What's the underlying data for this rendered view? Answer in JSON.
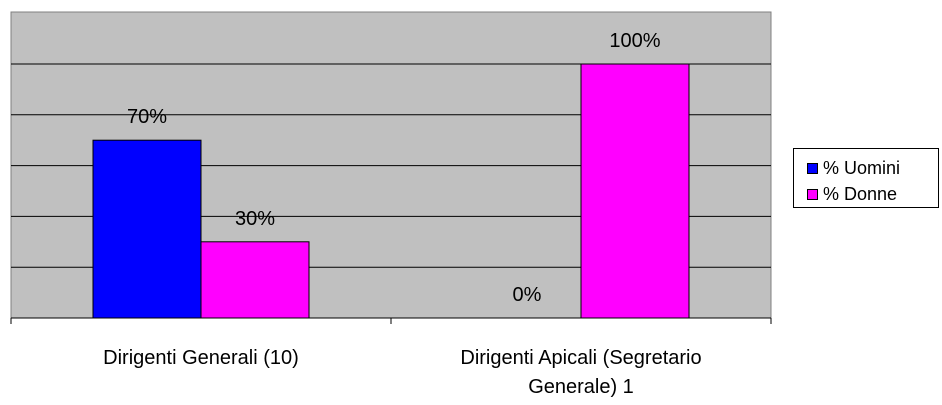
{
  "chart_data": {
    "type": "bar",
    "categories": [
      "Dirigenti Generali (10)",
      "Dirigenti Apicali (Segretario Generale) 1"
    ],
    "category_label_lines": [
      [
        "Dirigenti Generali (10)"
      ],
      [
        "Dirigenti Apicali (Segretario",
        "Generale) 1"
      ]
    ],
    "series": [
      {
        "name": "% Uomini",
        "values": [
          70,
          0
        ],
        "labels": [
          "70%",
          "0%"
        ],
        "color": "#0000ff"
      },
      {
        "name": "% Donne",
        "values": [
          30,
          100
        ],
        "labels": [
          "30%",
          "100%"
        ],
        "color": "#ff00ff"
      }
    ],
    "ylim": [
      0,
      100
    ],
    "grid": true,
    "legend_position": "right",
    "plot_background": "#c0c0c0"
  }
}
